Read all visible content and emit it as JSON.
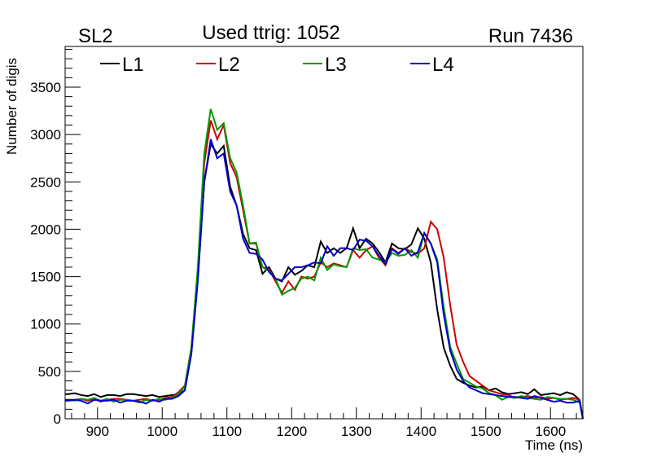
{
  "chart_data": {
    "type": "line",
    "title": "Used ttrig: 1052",
    "label_left": "SL2",
    "label_right": "Run 7436",
    "xlabel": "Time (ns)",
    "ylabel": "Number of digis",
    "xlim": [
      850,
      1650
    ],
    "ylim": [
      0,
      3930
    ],
    "xticks": [
      900,
      1000,
      1100,
      1200,
      1300,
      1400,
      1500,
      1600
    ],
    "yticks": [
      0,
      500,
      1000,
      1500,
      2000,
      2500,
      3000,
      3500
    ],
    "grid": false,
    "legend_position": "top",
    "x_start": 855,
    "bin_width": 10,
    "series": [
      {
        "name": "L1",
        "color": "#000000",
        "values": [
          260,
          270,
          250,
          240,
          260,
          230,
          250,
          250,
          240,
          260,
          260,
          250,
          240,
          250,
          230,
          240,
          250,
          260,
          300,
          700,
          1500,
          2500,
          2900,
          2800,
          2880,
          2450,
          2250,
          1950,
          1800,
          1780,
          1530,
          1600,
          1480,
          1450,
          1600,
          1520,
          1560,
          1620,
          1600,
          1870,
          1750,
          1800,
          1750,
          1800,
          2010,
          1800,
          1900,
          1850,
          1760,
          1650,
          1850,
          1800,
          1790,
          1840,
          2010,
          1900,
          1650,
          1150,
          750,
          560,
          420,
          380,
          350,
          330,
          340,
          300,
          320,
          280,
          260,
          270,
          280,
          260,
          310,
          250,
          260,
          270,
          250,
          280,
          260,
          200
        ]
      },
      {
        "name": "L2",
        "color": "#cc0000",
        "values": [
          200,
          200,
          210,
          190,
          210,
          180,
          200,
          210,
          210,
          200,
          190,
          200,
          210,
          190,
          200,
          220,
          230,
          280,
          350,
          750,
          1550,
          2700,
          3150,
          2950,
          3100,
          2700,
          2550,
          2200,
          1850,
          1850,
          1600,
          1580,
          1450,
          1330,
          1450,
          1360,
          1500,
          1480,
          1500,
          1650,
          1600,
          1640,
          1620,
          1600,
          1780,
          1700,
          1780,
          1820,
          1700,
          1620,
          1800,
          1750,
          1800,
          1760,
          1740,
          1800,
          2080,
          2000,
          1700,
          1200,
          780,
          600,
          450,
          400,
          350,
          300,
          280,
          260,
          250,
          220,
          230,
          240,
          220,
          230,
          210,
          220,
          200,
          210,
          220,
          200
        ]
      },
      {
        "name": "L3",
        "color": "#009900",
        "values": [
          200,
          190,
          210,
          200,
          220,
          190,
          210,
          180,
          200,
          200,
          190,
          170,
          200,
          190,
          210,
          200,
          220,
          260,
          340,
          740,
          1600,
          2800,
          3270,
          3050,
          3120,
          2750,
          2600,
          2250,
          1850,
          1860,
          1600,
          1560,
          1480,
          1310,
          1350,
          1380,
          1480,
          1500,
          1460,
          1700,
          1570,
          1630,
          1610,
          1600,
          1800,
          1780,
          1790,
          1700,
          1680,
          1650,
          1750,
          1720,
          1730,
          1780,
          1700,
          1960,
          1850,
          1680,
          1180,
          760,
          580,
          420,
          380,
          340,
          320,
          270,
          250,
          200,
          230,
          220,
          240,
          220,
          210,
          200,
          230,
          220,
          210,
          210,
          200,
          170
        ]
      },
      {
        "name": "L4",
        "color": "#0000cc",
        "values": [
          190,
          200,
          190,
          160,
          200,
          190,
          190,
          200,
          170,
          190,
          190,
          180,
          160,
          200,
          180,
          210,
          210,
          240,
          300,
          680,
          1450,
          2500,
          2950,
          2750,
          2800,
          2400,
          2250,
          1900,
          1750,
          1740,
          1680,
          1550,
          1480,
          1460,
          1530,
          1600,
          1600,
          1620,
          1650,
          1640,
          1820,
          1720,
          1800,
          1800,
          1780,
          1890,
          1880,
          1820,
          1720,
          1630,
          1790,
          1740,
          1800,
          1720,
          1760,
          1960,
          1850,
          1650,
          1100,
          720,
          520,
          400,
          330,
          300,
          270,
          260,
          250,
          240,
          230,
          230,
          220,
          210,
          240,
          220,
          200,
          180,
          190,
          170,
          170,
          190
        ]
      }
    ]
  }
}
